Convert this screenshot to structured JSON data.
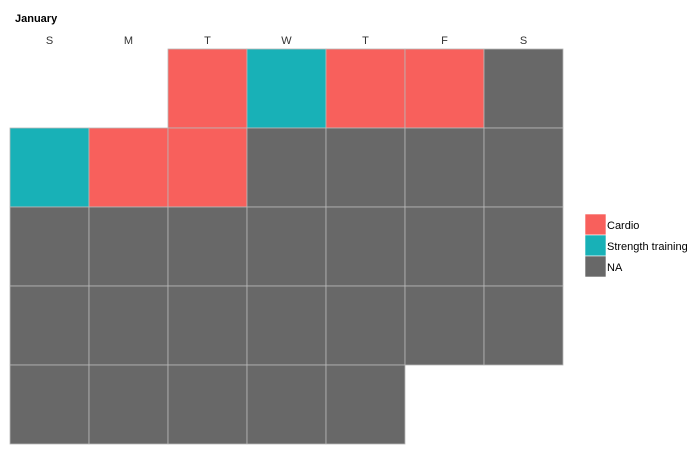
{
  "chart_data": {
    "type": "heatmap",
    "title": "January",
    "weekday_labels": [
      "S",
      "M",
      "T",
      "W",
      "T",
      "F",
      "S"
    ],
    "weeks": [
      [
        "",
        "",
        "Cardio",
        "Strength training",
        "Cardio",
        "Cardio",
        "NA"
      ],
      [
        "Strength training",
        "Cardio",
        "Cardio",
        "NA",
        "NA",
        "NA",
        "NA"
      ],
      [
        "NA",
        "NA",
        "NA",
        "NA",
        "NA",
        "NA",
        "NA"
      ],
      [
        "NA",
        "NA",
        "NA",
        "NA",
        "NA",
        "NA",
        "NA"
      ],
      [
        "NA",
        "NA",
        "NA",
        "NA",
        "NA",
        "",
        ""
      ]
    ],
    "legend": [
      {
        "label": "Cardio",
        "color": "#F8605C"
      },
      {
        "label": "Strength training",
        "color": "#18B1B7"
      },
      {
        "label": "NA",
        "color": "#686868"
      }
    ],
    "legend_position": "right"
  }
}
